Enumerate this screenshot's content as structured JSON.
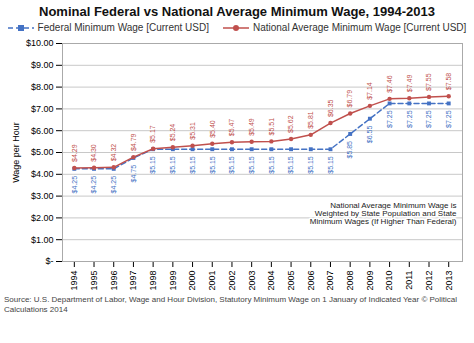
{
  "chart_data": {
    "type": "line",
    "title": "Nominal Federal vs National Average Minimum Wage, 1994-2013",
    "ylabel": "Wage per Hour",
    "x": [
      1994,
      1995,
      1996,
      1997,
      1998,
      1999,
      2000,
      2001,
      2002,
      2003,
      2004,
      2005,
      2006,
      2007,
      2008,
      2009,
      2010,
      2011,
      2012,
      2013
    ],
    "series": [
      {
        "name": "Federal Minimum Wage [Current USD]",
        "color": "#4472C4",
        "line_style": "dashed",
        "marker": "square",
        "values": [
          4.25,
          4.25,
          4.25,
          4.75,
          5.15,
          5.15,
          5.15,
          5.15,
          5.15,
          5.15,
          5.15,
          5.15,
          5.15,
          5.15,
          5.85,
          6.55,
          7.25,
          7.25,
          7.25,
          7.25
        ],
        "value_labels": [
          "$4.25",
          "$4.25",
          "$4.25",
          "$4.75",
          "$5.15",
          "$5.15",
          "$5.15",
          "$5.15",
          "$5.15",
          "$5.15",
          "$5.15",
          "$5.15",
          "$5.15",
          "$5.15",
          "$5.85",
          "$6.55",
          "$7.25",
          "$7.25",
          "$7.25",
          "$7.25"
        ]
      },
      {
        "name": "National Average Minimum Wage [Current USD]",
        "color": "#C0504D",
        "line_style": "solid",
        "marker": "circle",
        "values": [
          4.29,
          4.3,
          4.32,
          4.79,
          5.17,
          5.24,
          5.31,
          5.4,
          5.47,
          5.49,
          5.51,
          5.62,
          5.81,
          6.35,
          6.79,
          7.14,
          7.46,
          7.49,
          7.55,
          7.58
        ],
        "value_labels": [
          "$4.29",
          "$4.30",
          "$4.32",
          "$4.79",
          "$5.17",
          "$5.24",
          "$5.31",
          "$5.40",
          "$5.47",
          "$5.49",
          "$5.51",
          "$5.62",
          "$5.81",
          "$6.35",
          "$6.79",
          "$7.14",
          "$7.46",
          "$7.49",
          "$7.55",
          "$7.58"
        ]
      }
    ],
    "xlim": [
      1993.4,
      2013.7
    ],
    "xticks": [
      1994,
      1995,
      1996,
      1997,
      1998,
      1999,
      2000,
      2001,
      2002,
      2003,
      2004,
      2005,
      2006,
      2007,
      2008,
      2009,
      2010,
      2011,
      2012,
      2013
    ],
    "ylim": [
      0,
      10.0
    ],
    "yticks": [
      {
        "value": 0,
        "label": "$-"
      },
      {
        "value": 1.0,
        "label": "$1.00"
      },
      {
        "value": 2.0,
        "label": "$2.00"
      },
      {
        "value": 3.0,
        "label": "$3.00"
      },
      {
        "value": 4.0,
        "label": "$4.00"
      },
      {
        "value": 5.0,
        "label": "$5.00"
      },
      {
        "value": 6.0,
        "label": "$6.00"
      },
      {
        "value": 7.0,
        "label": "$7.00"
      },
      {
        "value": 8.0,
        "label": "$8.00"
      },
      {
        "value": 9.0,
        "label": "$9.00"
      },
      {
        "value": 10.0,
        "label": "$10.00"
      }
    ],
    "grid": "y",
    "legend": "top",
    "data_labels": true,
    "annotations": [
      "National Average Minimum Wage is\nWeighted by State Population and State\nMinimum Wages (If Higher Than Federal)"
    ],
    "caption": "Source: U.S. Department of Labor, Wage and Hour Division, Statutory Minimum Wage on 1 January of Indicated Year   © Political Calculations 2014"
  }
}
